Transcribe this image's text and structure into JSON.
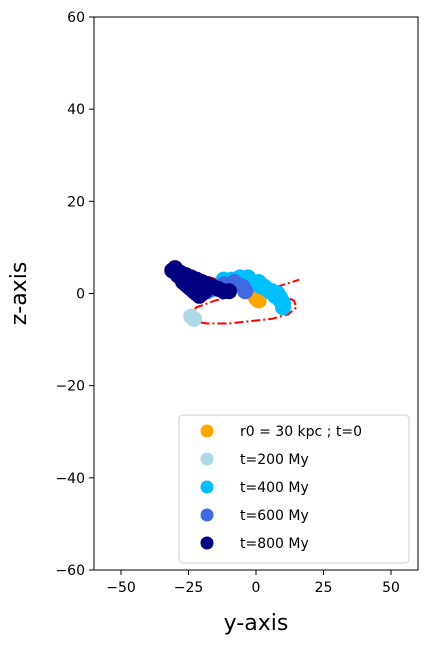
{
  "chart_data": {
    "type": "scatter",
    "xlabel": "y-axis",
    "ylabel": "z-axis",
    "xlim": [
      -60,
      60
    ],
    "ylim": [
      -60,
      60
    ],
    "x_ticks": [
      -50,
      -25,
      0,
      25,
      50
    ],
    "x_tick_labels": [
      "−50",
      "−25",
      "0",
      "25",
      "50"
    ],
    "y_ticks": [
      60,
      40,
      20,
      0,
      -20,
      -40,
      -60
    ],
    "y_tick_labels": [
      "60",
      "40",
      "20",
      "0",
      "−20",
      "−40",
      "−60"
    ],
    "grid": false,
    "legend_position": "lower-right",
    "series": [
      {
        "name": "r0 = 30 kpc ; t=0",
        "color": "#ffa500",
        "points": [
          [
            0,
            -1
          ],
          [
            -1,
            0
          ],
          [
            1,
            -1.5
          ]
        ]
      },
      {
        "name": "t=200 My",
        "color": "#add8e6",
        "points": [
          [
            -24,
            -5
          ],
          [
            -23,
            -5.5
          ],
          [
            -10,
            2.5
          ],
          [
            -6,
            3
          ],
          [
            -2,
            2.5
          ],
          [
            2,
            2
          ]
        ]
      },
      {
        "name": "t=400 My",
        "color": "#00bfff",
        "points": [
          [
            -12,
            3
          ],
          [
            -9,
            3
          ],
          [
            -7,
            3
          ],
          [
            -4,
            3
          ],
          [
            -2,
            2.5
          ],
          [
            0,
            2
          ],
          [
            2,
            1.5
          ],
          [
            4,
            1
          ],
          [
            6,
            0.5
          ],
          [
            8,
            0
          ],
          [
            9,
            -1
          ],
          [
            10,
            -2
          ],
          [
            10,
            -3
          ],
          [
            9,
            -1.5
          ],
          [
            7,
            -0.5
          ],
          [
            5,
            0.5
          ],
          [
            3,
            1.5
          ],
          [
            1,
            2.5
          ],
          [
            -3,
            3.5
          ],
          [
            -6,
            3.5
          ]
        ]
      },
      {
        "name": "t=600 My",
        "color": "#4169e1",
        "points": [
          [
            -26,
            3
          ],
          [
            -24,
            2
          ],
          [
            -22,
            1.5
          ],
          [
            -20,
            1
          ],
          [
            -18,
            0.5
          ],
          [
            -16,
            1
          ],
          [
            -12,
            2
          ],
          [
            -8,
            2.5
          ],
          [
            -5,
            1.5
          ],
          [
            -4,
            0.5
          ]
        ]
      },
      {
        "name": "t=800 My",
        "color": "#000080",
        "points": [
          [
            -31,
            5
          ],
          [
            -30,
            5.5
          ],
          [
            -29,
            4
          ],
          [
            -28,
            3.5
          ],
          [
            -27,
            2.5
          ],
          [
            -26,
            2
          ],
          [
            -25,
            1.5
          ],
          [
            -24,
            1
          ],
          [
            -23,
            0.5
          ],
          [
            -22,
            0
          ],
          [
            -21,
            -0.5
          ],
          [
            -20,
            0
          ],
          [
            -19,
            0.5
          ],
          [
            -28,
            4.5
          ],
          [
            -26,
            4
          ],
          [
            -24,
            3.5
          ],
          [
            -22,
            3
          ],
          [
            -20,
            2.5
          ],
          [
            -18,
            2
          ],
          [
            -16,
            1.5
          ],
          [
            -14,
            1
          ],
          [
            -12,
            0.5
          ],
          [
            -10,
            0.5
          ]
        ]
      }
    ],
    "orbit_path": {
      "color": "#ff0000",
      "style": "dash-dot",
      "points": [
        [
          -30,
          5
        ],
        [
          -26,
          5
        ],
        [
          -20,
          4
        ],
        [
          -14,
          3
        ],
        [
          -8,
          2
        ],
        [
          -2,
          1
        ],
        [
          4,
          0
        ],
        [
          10,
          -0.5
        ],
        [
          14,
          -1.5
        ],
        [
          15,
          -3
        ],
        [
          12,
          -4.5
        ],
        [
          6,
          -5.5
        ],
        [
          -2,
          -6
        ],
        [
          -10,
          -6.5
        ],
        [
          -18,
          -6.5
        ],
        [
          -24,
          -6
        ],
        [
          -25,
          -4.5
        ],
        [
          -22,
          -3
        ],
        [
          -15,
          -1.5
        ],
        [
          -8,
          -0.5
        ],
        [
          0,
          0.5
        ],
        [
          8,
          1.5
        ],
        [
          16,
          3
        ]
      ]
    }
  }
}
